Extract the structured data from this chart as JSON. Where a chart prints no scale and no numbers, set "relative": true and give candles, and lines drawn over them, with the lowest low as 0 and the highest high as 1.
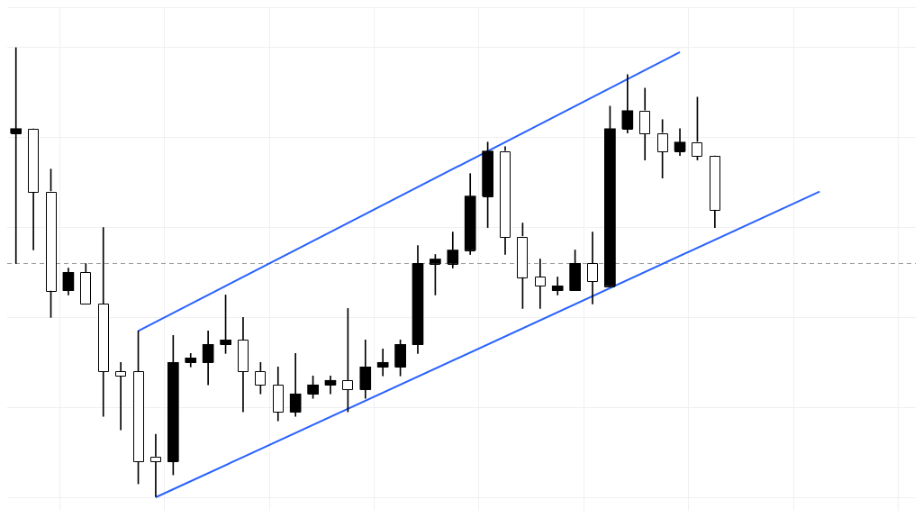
{
  "chart_data": {
    "type": "candlestick",
    "relative": true,
    "grid": true,
    "tick_labels": false,
    "categories": [
      null,
      null,
      null,
      null,
      null,
      null,
      null,
      null,
      null,
      null,
      null,
      null,
      null,
      null,
      null,
      null,
      null,
      null,
      null,
      null,
      null,
      null,
      null,
      null,
      null,
      null,
      null,
      null,
      null,
      null,
      null,
      null,
      null,
      null,
      null,
      null,
      null,
      null,
      null,
      null,
      null,
      null,
      null,
      null,
      null,
      null,
      null,
      null,
      null,
      null,
      null,
      null
    ],
    "ohlc": [
      [
        0.81,
        1.0,
        0.52,
        0.82
      ],
      [
        0.82,
        0.82,
        0.55,
        0.68
      ],
      [
        0.68,
        0.73,
        0.4,
        0.46
      ],
      [
        0.46,
        0.51,
        0.45,
        0.5
      ],
      [
        0.5,
        0.52,
        0.43,
        0.43
      ],
      [
        0.43,
        0.6,
        0.18,
        0.28
      ],
      [
        0.28,
        0.3,
        0.15,
        0.27
      ],
      [
        0.28,
        0.37,
        0.03,
        0.08
      ],
      [
        0.09,
        0.14,
        0,
        0.08
      ],
      [
        0.08,
        0.36,
        0.05,
        0.3
      ],
      [
        0.3,
        0.32,
        0.29,
        0.31
      ],
      [
        0.3,
        0.37,
        0.25,
        0.34
      ],
      [
        0.34,
        0.45,
        0.32,
        0.35
      ],
      [
        0.35,
        0.4,
        0.19,
        0.28
      ],
      [
        0.28,
        0.3,
        0.23,
        0.25
      ],
      [
        0.25,
        0.29,
        0.17,
        0.19
      ],
      [
        0.19,
        0.32,
        0.18,
        0.23
      ],
      [
        0.23,
        0.27,
        0.22,
        0.25
      ],
      [
        0.25,
        0.27,
        0.23,
        0.26
      ],
      [
        0.26,
        0.42,
        0.19,
        0.24
      ],
      [
        0.24,
        0.35,
        0.22,
        0.29
      ],
      [
        0.29,
        0.33,
        0.27,
        0.3
      ],
      [
        0.29,
        0.35,
        0.27,
        0.34
      ],
      [
        0.34,
        0.56,
        0.32,
        0.52
      ],
      [
        0.52,
        0.54,
        0.45,
        0.53
      ],
      [
        0.52,
        0.59,
        0.51,
        0.55
      ],
      [
        0.55,
        0.72,
        0.54,
        0.67
      ],
      [
        0.67,
        0.79,
        0.6,
        0.77
      ],
      [
        0.77,
        0.78,
        0.54,
        0.58
      ],
      [
        0.58,
        0.61,
        0.42,
        0.49
      ],
      [
        0.49,
        0.53,
        0.42,
        0.47
      ],
      [
        0.46,
        0.49,
        0.45,
        0.47
      ],
      [
        0.46,
        0.55,
        0.46,
        0.52
      ],
      [
        0.52,
        0.59,
        0.43,
        0.48
      ],
      [
        0.47,
        0.87,
        0.47,
        0.82
      ],
      [
        0.82,
        0.94,
        0.81,
        0.86
      ],
      [
        0.86,
        0.91,
        0.75,
        0.81
      ],
      [
        0.81,
        0.84,
        0.71,
        0.77
      ],
      [
        0.77,
        0.82,
        0.76,
        0.79
      ],
      [
        0.79,
        0.89,
        0.75,
        0.76
      ],
      [
        0.76,
        0.76,
        0.6,
        0.64
      ],
      null,
      null,
      null,
      null,
      null,
      null,
      null,
      null,
      null,
      null,
      null
    ],
    "colors": [
      "#000000",
      "#ffffff",
      "#ffffff",
      "#000000",
      "#ffffff",
      "#ffffff",
      "#ffffff",
      "#ffffff",
      "#ffffff",
      "#000000",
      "#000000",
      "#000000",
      "#000000",
      "#ffffff",
      "#ffffff",
      "#ffffff",
      "#000000",
      "#000000",
      "#000000",
      "#ffffff",
      "#000000",
      "#000000",
      "#000000",
      "#000000",
      "#000000",
      "#000000",
      "#000000",
      "#000000",
      "#ffffff",
      "#ffffff",
      "#ffffff",
      "#000000",
      "#000000",
      "#ffffff",
      "#000000",
      "#000000",
      "#ffffff",
      "#ffffff",
      "#000000",
      "#ffffff",
      "#ffffff",
      null,
      null,
      null,
      null,
      null,
      null,
      null,
      null,
      null,
      null,
      null
    ],
    "series": [
      {
        "type": "line",
        "color": "#2962ff",
        "values": [
          null,
          null,
          null,
          null,
          null,
          null,
          null,
          0.37,
          null,
          null,
          null,
          null,
          null,
          null,
          null,
          null,
          null,
          null,
          null,
          null,
          null,
          null,
          null,
          null,
          null,
          null,
          null,
          null,
          null,
          null,
          null,
          null,
          null,
          null,
          null,
          null,
          null,
          null,
          0.99,
          null,
          null,
          null,
          null,
          null,
          null,
          null,
          null,
          null,
          null,
          null,
          null,
          null
        ]
      },
      {
        "type": "line",
        "color": "#2962ff",
        "values": [
          null,
          null,
          null,
          null,
          null,
          null,
          null,
          null,
          0,
          null,
          null,
          null,
          null,
          null,
          null,
          null,
          null,
          null,
          null,
          null,
          null,
          null,
          null,
          null,
          null,
          null,
          null,
          null,
          null,
          null,
          null,
          null,
          null,
          null,
          null,
          null,
          null,
          null,
          null,
          null,
          null,
          null,
          null,
          null,
          null,
          null,
          0.68,
          null,
          null,
          null,
          null,
          null
        ]
      }
    ],
    "ref_lines": [
      {
        "axis": "y",
        "value": 0.52,
        "color": "#9e9e9e",
        "line_style": "dashed"
      }
    ]
  }
}
